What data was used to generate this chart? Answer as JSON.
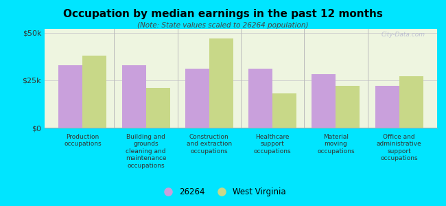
{
  "title": "Occupation by median earnings in the past 12 months",
  "subtitle": "(Note: State values scaled to 26264 population)",
  "categories": [
    "Production\noccupations",
    "Building and\ngrounds\ncleaning and\nmaintenance\noccupations",
    "Construction\nand extraction\noccupations",
    "Healthcare\nsupport\noccupations",
    "Material\nmoving\noccupations",
    "Office and\nadministrative\nsupport\noccupations"
  ],
  "values_26264": [
    33000,
    33000,
    31000,
    31000,
    28000,
    22000
  ],
  "values_wv": [
    38000,
    21000,
    47000,
    18000,
    22000,
    27000
  ],
  "color_26264": "#c9a0dc",
  "color_wv": "#c8d888",
  "background_color": "#00e5ff",
  "plot_bg_color": "#eef5e0",
  "ylim": [
    0,
    52000
  ],
  "yticks": [
    0,
    25000,
    50000
  ],
  "ytick_labels": [
    "$0",
    "$25k",
    "$50k"
  ],
  "legend_label_26264": "26264",
  "legend_label_wv": "West Virginia",
  "watermark": "City-Data.com",
  "bar_width": 0.38,
  "divider_color": "#bbbbbb",
  "grid_color": "#cccccc"
}
